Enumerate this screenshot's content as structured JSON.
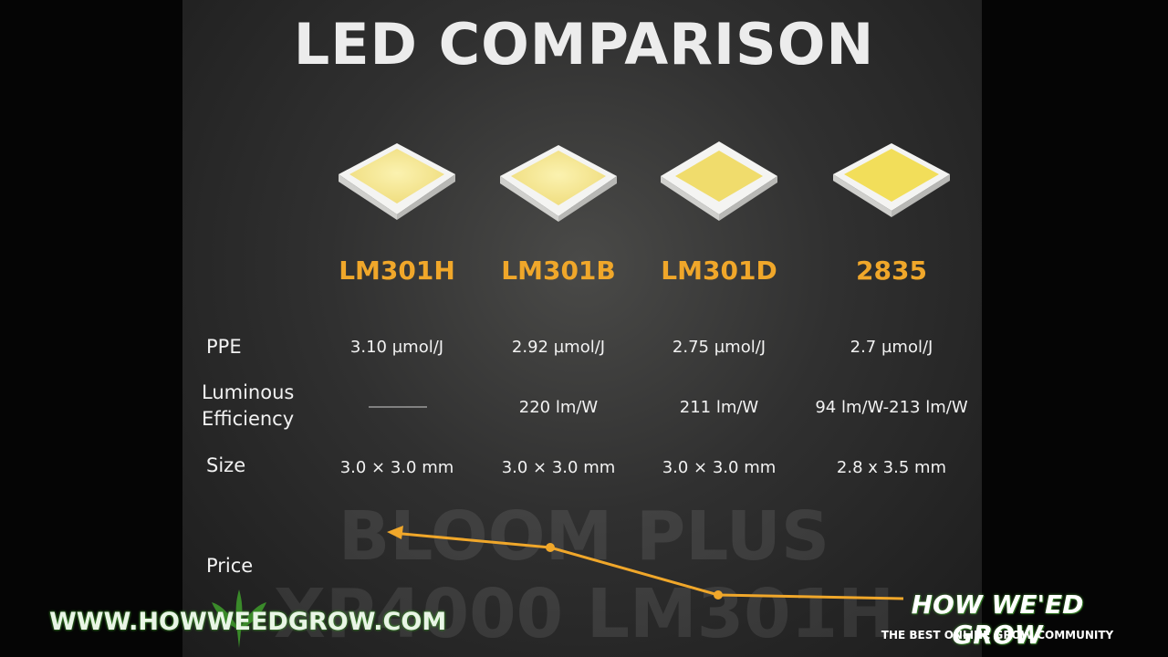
{
  "title": "LED COMPARISON",
  "columns": [
    "LM301H",
    "LM301B",
    "LM301D",
    "2835"
  ],
  "rows": [
    {
      "label": "PPE",
      "cells": [
        "3.10 µmol/J",
        "2.92 µmol/J",
        "2.75 µmol/J",
        "2.7 µmol/J"
      ]
    },
    {
      "label": "Luminous Efficiency",
      "cells": [
        null,
        "220 lm/W",
        "211 lm/W",
        "94 lm/W-213 lm/W"
      ]
    },
    {
      "label": "Size",
      "cells": [
        "3.0 × 3.0 mm",
        "3.0 × 3.0 mm",
        "3.0 × 3.0 mm",
        "2.8 x 3.5 mm"
      ]
    },
    {
      "label": "Price"
    }
  ],
  "watermarks": [
    "BLOOM PLUS",
    "XP4000 LM301H"
  ],
  "footer": {
    "website": "WWW.HOWWEEDGROW.COM",
    "brand": "HOW WE'ED GROW",
    "tagline": "THE BEST ONLINE GROW COMMUNITY"
  }
}
